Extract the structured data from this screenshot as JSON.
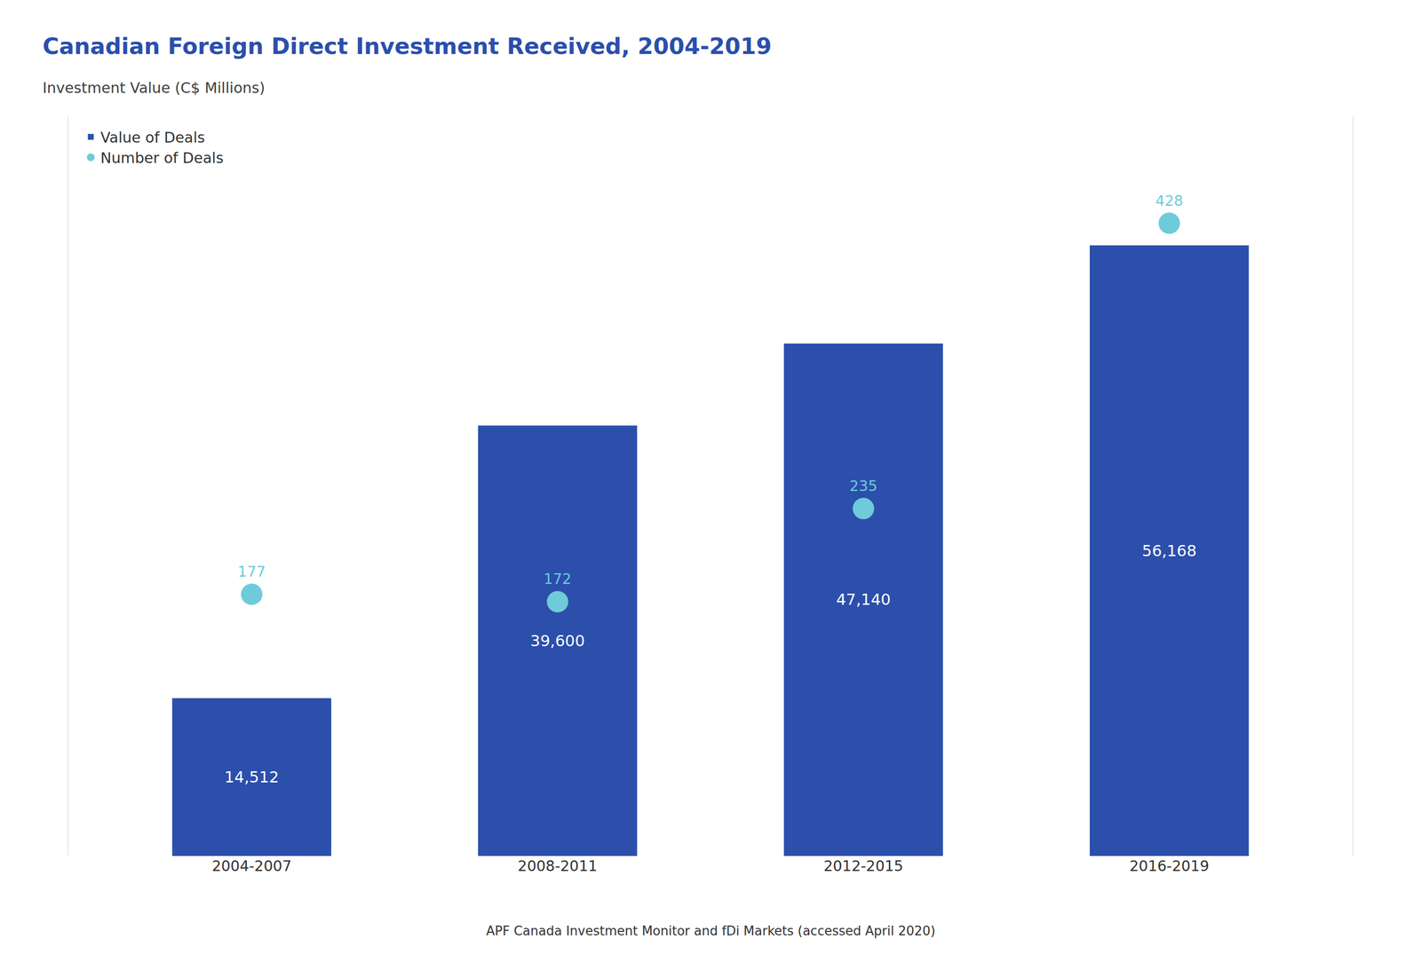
{
  "chart_data": {
    "type": "bar",
    "title": "Canadian Foreign Direct Investment Received, 2004-2019",
    "subtitle": "Investment Value (C$ Millions)",
    "annotations": [
      "APF Canada Investment Monitor and fDi Markets (accessed April 2020)"
    ],
    "categories": [
      "2004-2007",
      "2008-2011",
      "2012-2015",
      "2016-2019"
    ],
    "series": [
      {
        "name": "Value of Deals",
        "type": "bar",
        "color": "#2B4FAB",
        "values": [
          14512,
          39600,
          47140,
          56168
        ],
        "value_labels": [
          "14,512",
          "39,600",
          "47,140",
          "56,168"
        ]
      },
      {
        "name": "Number of Deals",
        "type": "scatter",
        "marker": "circle",
        "line_style": "none",
        "color": "#6ECBD9",
        "axis": "y2",
        "values": [
          177,
          172,
          235,
          428
        ]
      }
    ],
    "ylim": [
      0,
      68000
    ],
    "y2lim": [
      0,
      500
    ],
    "data_labels": true,
    "tick_labels": "x",
    "grid": false,
    "legend": "upper left"
  }
}
